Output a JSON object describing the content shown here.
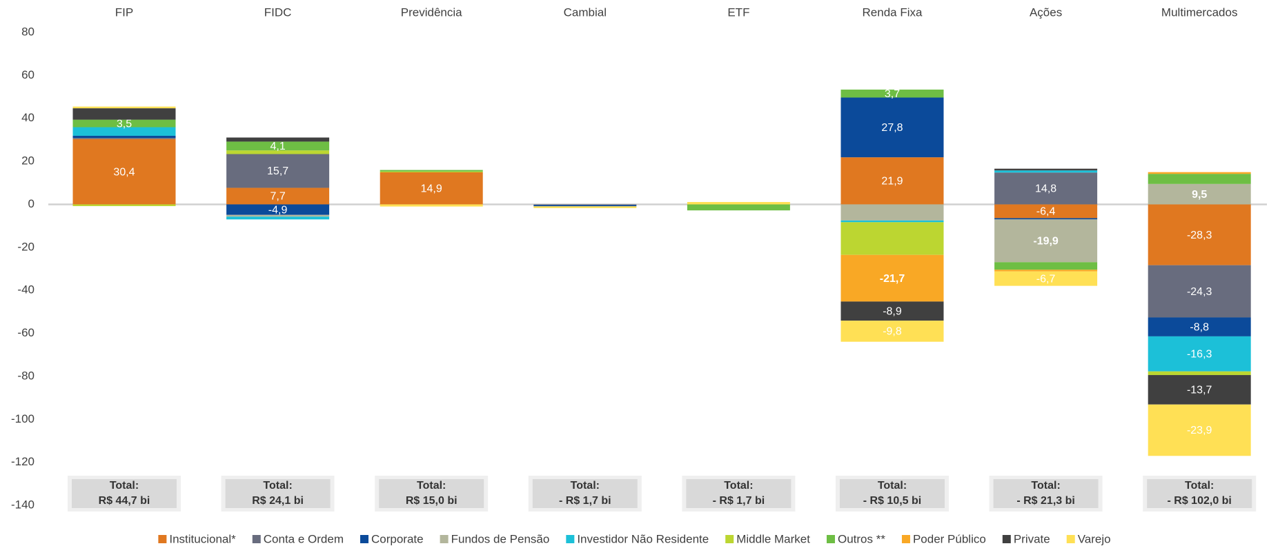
{
  "chart_data": {
    "type": "bar",
    "stacked": true,
    "grid": false,
    "legend": "bottom",
    "categories": [
      "FIP",
      "FIDC",
      "Previdência",
      "Cambial",
      "ETF",
      "Renda Fixa",
      "Ações",
      "Multimercados"
    ],
    "ylim": [
      -140,
      80
    ],
    "yticks": [
      80,
      60,
      40,
      20,
      0,
      -20,
      -40,
      -60,
      -80,
      -100,
      -120,
      -140
    ],
    "total_label": "Total:",
    "totals": [
      "R$ 44,7 bi",
      "R$ 24,1 bi",
      "R$ 15,0 bi",
      "- R$ 1,7 bi",
      "- R$ 1,7 bi",
      "- R$ 10,5 bi",
      "- R$ 21,3 bi",
      "- R$ 102,0 bi"
    ],
    "series": [
      {
        "name": "Institucional*",
        "color": "#e07820",
        "values": [
          30.4,
          7.7,
          14.9,
          0,
          0,
          21.9,
          -6.4,
          -28.3
        ],
        "value_labels": [
          "30,4",
          "7,7",
          "14,9",
          null,
          null,
          "21,9",
          "-6,4",
          "-28,3"
        ]
      },
      {
        "name": "Conta e Ordem",
        "color": "#686c7e",
        "values": [
          0.5,
          15.7,
          0,
          -0.3,
          0,
          0,
          14.8,
          -24.3
        ],
        "value_labels": [
          null,
          "15,7",
          null,
          null,
          null,
          null,
          "14,8",
          "-24,3"
        ]
      },
      {
        "name": "Corporate",
        "color": "#0b4a9a",
        "values": [
          1.0,
          -4.9,
          0,
          -0.6,
          0,
          27.8,
          -0.6,
          -8.8
        ],
        "value_labels": [
          null,
          "-4,9",
          null,
          null,
          null,
          "27,8",
          null,
          "-8,8"
        ]
      },
      {
        "name": "Fundos de Pensão",
        "color": "#b3b69c",
        "bold": true,
        "values": [
          0,
          -0.8,
          0,
          0,
          0,
          -7.5,
          -19.9,
          9.5
        ],
        "value_labels": [
          null,
          null,
          null,
          null,
          null,
          null,
          "-19,9",
          "9,5"
        ]
      },
      {
        "name": "Investidor Não Residente",
        "color": "#1cc0d8",
        "values": [
          4.0,
          -1.3,
          0,
          0,
          0,
          -0.8,
          1.0,
          -16.3
        ],
        "value_labels": [
          null,
          null,
          null,
          null,
          null,
          null,
          null,
          "-16,3"
        ]
      },
      {
        "name": "Middle Market",
        "color": "#bcd631",
        "values": [
          -0.8,
          1.7,
          0.4,
          0,
          0,
          -15.2,
          0,
          -1.7
        ],
        "value_labels": [
          null,
          null,
          null,
          null,
          null,
          null,
          null,
          null
        ]
      },
      {
        "name": "Outros **",
        "color": "#6ebe44",
        "values": [
          3.5,
          4.1,
          0.7,
          0,
          -2.8,
          3.7,
          -3.5,
          4.7
        ],
        "value_labels": [
          "3,5",
          "4,1",
          null,
          null,
          null,
          "3,7",
          null,
          null
        ]
      },
      {
        "name": "Poder Público",
        "color": "#f9a825",
        "bold": true,
        "values": [
          0,
          0,
          0,
          0,
          0,
          -21.7,
          -0.8,
          0.8
        ],
        "value_labels": [
          null,
          null,
          null,
          null,
          null,
          "-21,7",
          null,
          null
        ]
      },
      {
        "name": "Private",
        "color": "#404040",
        "values": [
          5.3,
          1.9,
          0,
          0,
          0,
          -8.9,
          0.8,
          -13.7
        ],
        "value_labels": [
          null,
          null,
          null,
          null,
          null,
          "-8,9",
          null,
          "-13,7"
        ]
      },
      {
        "name": "Varejo",
        "color": "#ffe055",
        "values": [
          0.8,
          0,
          -1.0,
          -0.8,
          1.1,
          -9.8,
          -6.7,
          -23.9
        ],
        "value_labels": [
          null,
          null,
          null,
          null,
          null,
          "-9,8",
          "-6,7",
          "-23,9"
        ]
      }
    ]
  }
}
